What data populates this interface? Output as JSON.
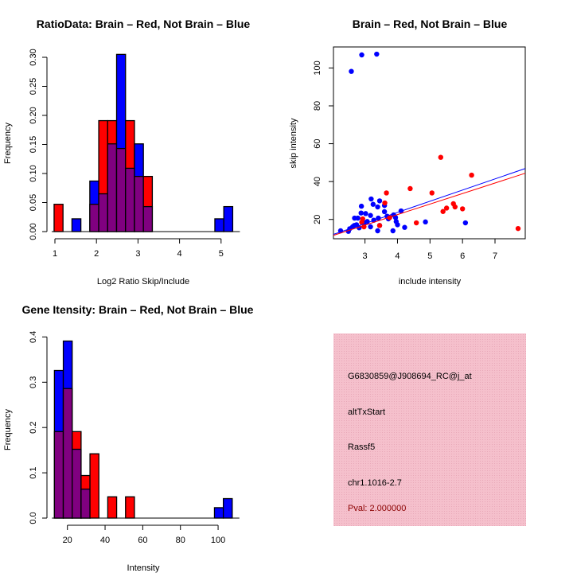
{
  "chart_data": [
    {
      "type": "bar",
      "subtype": "overlaid-histogram",
      "title": "RatioData: Brain – Red, Not Brain – Blue",
      "xlabel": "Log2 Ratio Skip/Include",
      "ylabel": "Frequency",
      "xlim": [
        0.98,
        5.3
      ],
      "ylim": [
        0,
        0.3
      ],
      "xticks": [
        1,
        2,
        3,
        4,
        5
      ],
      "yticks": [
        "0.00",
        "0.05",
        "0.10",
        "0.15",
        "0.20",
        "0.25",
        "0.30"
      ],
      "bin_start": 0.98,
      "bin_width": 0.215,
      "overlap_color": "#800080",
      "series": [
        {
          "name": "Brain",
          "color": "#ff0000",
          "values": [
            0.047,
            0,
            0,
            0,
            0.047,
            0.191,
            0.191,
            0.143,
            0.191,
            0.095,
            0.095,
            0,
            0,
            0,
            0,
            0,
            0,
            0,
            0,
            0
          ]
        },
        {
          "name": "Not Brain",
          "color": "#0000ff",
          "values": [
            0,
            0,
            0.022,
            0,
            0.087,
            0.065,
            0.151,
            0.305,
            0.109,
            0.151,
            0.043,
            0,
            0,
            0,
            0,
            0,
            0,
            0,
            0.022,
            0.043
          ]
        }
      ]
    },
    {
      "type": "scatter",
      "title": "Brain – Red, Not Brain – Blue",
      "xlabel": "include intensity",
      "ylabel": "skip intensity",
      "xlim": [
        2.03,
        7.93
      ],
      "ylim": [
        9.8,
        111.1
      ],
      "xticks": [
        3,
        4,
        5,
        6,
        7
      ],
      "yticks": [
        20,
        40,
        60,
        80,
        100
      ],
      "series": [
        {
          "name": "Not Brain",
          "color": "#0000ff",
          "fit": {
            "intercept": 0.12,
            "slope": 5.9
          },
          "points": [
            [
              2.9,
              106.9
            ],
            [
              3.36,
              107.3
            ],
            [
              2.58,
              98.2
            ],
            [
              2.25,
              14.0
            ],
            [
              2.49,
              13.7
            ],
            [
              2.53,
              15.1
            ],
            [
              2.62,
              16.1
            ],
            [
              2.67,
              16.8
            ],
            [
              2.74,
              17.2
            ],
            [
              2.68,
              20.7
            ],
            [
              2.78,
              20.7
            ],
            [
              2.88,
              23.4
            ],
            [
              2.89,
              27.0
            ],
            [
              2.82,
              15.6
            ],
            [
              3.02,
              23.1
            ],
            [
              3.07,
              18.9
            ],
            [
              3.17,
              22.1
            ],
            [
              3.19,
              30.8
            ],
            [
              3.25,
              28.0
            ],
            [
              3.39,
              26.6
            ],
            [
              3.45,
              29.8
            ],
            [
              3.6,
              27.4
            ],
            [
              3.6,
              24.1
            ],
            [
              3.41,
              20.7
            ],
            [
              3.17,
              16.1
            ],
            [
              3.39,
              14.0
            ],
            [
              3.45,
              16.8
            ],
            [
              3.68,
              21.7
            ],
            [
              3.72,
              20.3
            ],
            [
              3.88,
              22.4
            ],
            [
              3.94,
              21.0
            ],
            [
              3.96,
              18.9
            ],
            [
              4.0,
              17.2
            ],
            [
              3.86,
              14.0
            ],
            [
              4.11,
              24.5
            ],
            [
              4.22,
              15.8
            ],
            [
              4.86,
              18.7
            ],
            [
              6.09,
              18.2
            ],
            [
              3.27,
              19.6
            ],
            [
              2.98,
              18.2
            ]
          ]
        },
        {
          "name": "Brain",
          "color": "#ff0000",
          "fit": {
            "intercept": 0.31,
            "slope": 5.56
          },
          "points": [
            [
              3.66,
              34.0
            ],
            [
              3.61,
              28.7
            ],
            [
              2.93,
              20.3
            ],
            [
              2.9,
              18.5
            ],
            [
              2.97,
              16.1
            ],
            [
              3.76,
              21.0
            ],
            [
              3.45,
              16.8
            ],
            [
              4.39,
              36.3
            ],
            [
              4.58,
              18.2
            ],
            [
              5.06,
              34.0
            ],
            [
              5.33,
              52.8
            ],
            [
              5.4,
              24.2
            ],
            [
              5.51,
              26.0
            ],
            [
              5.72,
              28.3
            ],
            [
              5.77,
              26.6
            ],
            [
              6.0,
              25.6
            ],
            [
              6.28,
              43.4
            ],
            [
              7.71,
              15.2
            ]
          ]
        }
      ]
    },
    {
      "type": "bar",
      "subtype": "overlaid-histogram",
      "title": "Gene Itensity: Brain – Red, Not Brain – Blue",
      "xlabel": "Intensity",
      "ylabel": "Frequency",
      "xlim": [
        13.1,
        107.5
      ],
      "ylim": [
        0,
        0.4
      ],
      "xticks": [
        20,
        40,
        60,
        80,
        100
      ],
      "yticks": [
        "0.0",
        "0.1",
        "0.2",
        "0.3",
        "0.4"
      ],
      "bin_start": 13.1,
      "bin_width": 4.72,
      "overlap_color": "#800080",
      "series": [
        {
          "name": "Brain",
          "color": "#ff0000",
          "values": [
            0.191,
            0.286,
            0.191,
            0.094,
            0.142,
            0,
            0.047,
            0,
            0.047,
            0,
            0,
            0,
            0,
            0,
            0,
            0,
            0,
            0,
            0,
            0
          ]
        },
        {
          "name": "Not Brain",
          "color": "#0000ff",
          "values": [
            0.326,
            0.391,
            0.152,
            0.064,
            0,
            0,
            0,
            0,
            0,
            0,
            0,
            0,
            0,
            0,
            0,
            0,
            0,
            0,
            0.023,
            0.043
          ]
        }
      ]
    }
  ],
  "info_panel": {
    "background": "#f5c0cc",
    "probe_id": "G6830859@J908694_RC@j_at",
    "event_type": "altTxStart",
    "gene": "Rassf5",
    "location": "chr1.1016-2.7",
    "pval": "Pval: 2.000000",
    "pval_color": "#8b0000"
  }
}
